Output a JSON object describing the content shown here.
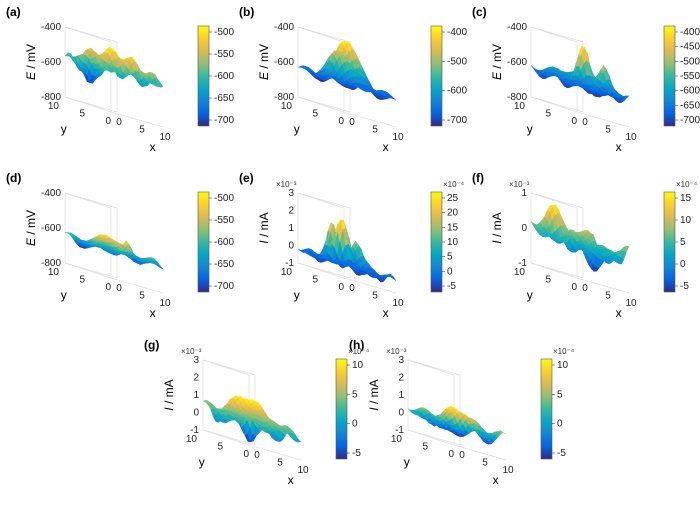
{
  "figure": {
    "colors": {
      "colormap_parula": [
        "#352a87",
        "#0363e1",
        "#1485d4",
        "#06a7c6",
        "#38b99e",
        "#92bf73",
        "#d9ba56",
        "#fcce2e",
        "#f9fb0e"
      ],
      "text": "#000000",
      "grid": "#dddddd"
    }
  },
  "chart_data": [
    {
      "panel": "(a)",
      "type": "surface",
      "xlabel": "x",
      "ylabel": "y",
      "zlabel_italic": "E",
      "zlabel_unit": " / mV",
      "x_ticks": [
        "0",
        "5",
        "10"
      ],
      "y_ticks": [
        "0",
        "5",
        "10"
      ],
      "z_ticks": [
        "-400",
        "-600",
        "-800"
      ],
      "zlim": [
        -800,
        -400
      ],
      "colorbar": {
        "ticks": [
          "-500",
          "-550",
          "-600",
          "-650",
          "-700"
        ],
        "exponent": ""
      },
      "surface": {
        "base": -560,
        "amplitude": 45,
        "seed": 1,
        "features": [
          {
            "x": 6,
            "y": 6,
            "amp": 70,
            "w": 2.2
          },
          {
            "x": 2,
            "y": 7,
            "amp": -160,
            "w": 0.8
          },
          {
            "x": 8,
            "y": 3,
            "amp": 40,
            "w": 1.5
          }
        ]
      }
    },
    {
      "panel": "(b)",
      "type": "surface",
      "xlabel": "x",
      "ylabel": "y",
      "zlabel_italic": "E",
      "zlabel_unit": " / mV",
      "x_ticks": [
        "0",
        "5",
        "10"
      ],
      "y_ticks": [
        "0",
        "5",
        "10"
      ],
      "z_ticks": [
        "-400",
        "-600",
        "-800"
      ],
      "zlim": [
        -800,
        -400
      ],
      "colorbar": {
        "ticks": [
          "-400",
          "-500",
          "-600",
          "-700"
        ],
        "exponent": ""
      },
      "surface": {
        "base": -640,
        "amplitude": 35,
        "seed": 2,
        "features": [
          {
            "x": 4,
            "y": 4,
            "amp": 260,
            "w": 1.6
          },
          {
            "x": 7,
            "y": 8,
            "amp": 160,
            "w": 1.5
          },
          {
            "x": 1,
            "y": 2,
            "amp": -90,
            "w": 1.2
          }
        ]
      }
    },
    {
      "panel": "(c)",
      "type": "surface",
      "xlabel": "x",
      "ylabel": "y",
      "zlabel_italic": "E",
      "zlabel_unit": " / mV",
      "x_ticks": [
        "0",
        "5",
        "10"
      ],
      "y_ticks": [
        "0",
        "5",
        "10"
      ],
      "z_ticks": [
        "-400",
        "-600",
        "-800"
      ],
      "zlim": [
        -800,
        -400
      ],
      "colorbar": {
        "ticks": [
          "-400",
          "-450",
          "-500",
          "-550",
          "-600",
          "-650",
          "-700"
        ],
        "exponent": ""
      },
      "surface": {
        "base": -640,
        "amplitude": 35,
        "seed": 3,
        "features": [
          {
            "x": 7,
            "y": 6,
            "amp": 220,
            "w": 0.9
          },
          {
            "x": 9,
            "y": 4,
            "amp": 140,
            "w": 0.8
          },
          {
            "x": 3,
            "y": 5,
            "amp": 60,
            "w": 1.6
          }
        ]
      }
    },
    {
      "panel": "(d)",
      "type": "surface",
      "xlabel": "x",
      "ylabel": "y",
      "zlabel_italic": "E",
      "zlabel_unit": " / mV",
      "x_ticks": [
        "0",
        "5",
        "10"
      ],
      "y_ticks": [
        "0",
        "5",
        "10"
      ],
      "z_ticks": [
        "-400",
        "-600",
        "-800"
      ],
      "zlim": [
        -800,
        -400
      ],
      "colorbar": {
        "ticks": [
          "-500",
          "-550",
          "-600",
          "-650",
          "-700"
        ],
        "exponent": ""
      },
      "surface": {
        "base": -650,
        "amplitude": 25,
        "seed": 4,
        "features": [
          {
            "x": 6,
            "y": 7,
            "amp": 80,
            "w": 1.4
          },
          {
            "x": 9,
            "y": 6,
            "amp": 90,
            "w": 0.7
          },
          {
            "x": 2,
            "y": 3,
            "amp": 40,
            "w": 1.4
          }
        ]
      }
    },
    {
      "panel": "(e)",
      "type": "surface",
      "xlabel": "x",
      "ylabel": "y",
      "zlabel_italic": "I",
      "zlabel_unit": " / mA",
      "x_ticks": [
        "0",
        "5",
        "10"
      ],
      "y_ticks": [
        "0",
        "5",
        "10"
      ],
      "z_ticks": [
        "3",
        "2",
        "1",
        "0",
        "-1"
      ],
      "zlim": [
        -1,
        3
      ],
      "z_exponent": "×10⁻³",
      "colorbar": {
        "ticks": [
          "25",
          "20",
          "15",
          "10",
          "5",
          "0",
          "-5"
        ],
        "exponent": "×10⁻⁴"
      },
      "surface": {
        "base": -0.3,
        "amplitude": 0.25,
        "seed": 5,
        "features": [
          {
            "x": 6,
            "y": 7,
            "amp": 2.6,
            "w": 1.0
          },
          {
            "x": 3,
            "y": 6,
            "amp": 2.0,
            "w": 0.8
          },
          {
            "x": 5,
            "y": 3,
            "amp": 1.6,
            "w": 0.9
          }
        ]
      }
    },
    {
      "panel": "(f)",
      "type": "surface",
      "xlabel": "x",
      "ylabel": "y",
      "zlabel_italic": "I",
      "zlabel_unit": " / mA",
      "x_ticks": [
        "0",
        "5",
        "10"
      ],
      "y_ticks": [
        "0",
        "5",
        "10"
      ],
      "z_ticks": [
        "1",
        "0",
        "-1"
      ],
      "zlim": [
        -1,
        1
      ],
      "z_exponent": "×10⁻³",
      "colorbar": {
        "ticks": [
          "15",
          "10",
          "5",
          "0",
          "-5"
        ],
        "exponent": "×10⁻⁴"
      },
      "surface": {
        "base": 0.0,
        "amplitude": 0.25,
        "seed": 6,
        "features": [
          {
            "x": 2,
            "y": 7,
            "amp": 0.6,
            "w": 1.2
          },
          {
            "x": 8,
            "y": 8,
            "amp": 0.5,
            "w": 1.2
          },
          {
            "x": 6,
            "y": 3,
            "amp": -0.6,
            "w": 1.4
          }
        ]
      }
    },
    {
      "panel": "(g)",
      "type": "surface",
      "xlabel": "x",
      "ylabel": "y",
      "zlabel_italic": "I",
      "zlabel_unit": " / mA",
      "x_ticks": [
        "0",
        "5",
        "10"
      ],
      "y_ticks": [
        "0",
        "5",
        "10"
      ],
      "z_ticks": [
        "3",
        "2",
        "1",
        "0",
        "-1"
      ],
      "zlim": [
        -1,
        3
      ],
      "z_exponent": "×10⁻³",
      "colorbar": {
        "ticks": [
          "10",
          "5",
          "0",
          "-5"
        ],
        "exponent": "×10⁻⁴"
      },
      "surface": {
        "base": 0.2,
        "amplitude": 0.4,
        "seed": 7,
        "features": [
          {
            "x": 5,
            "y": 6,
            "amp": 1.3,
            "w": 1.8
          },
          {
            "x": 2,
            "y": 3,
            "amp": -0.9,
            "w": 1.0
          },
          {
            "x": 8,
            "y": 4,
            "amp": 0.8,
            "w": 1.0
          }
        ]
      }
    },
    {
      "panel": "(h)",
      "type": "surface",
      "xlabel": "x",
      "ylabel": "y",
      "zlabel_italic": "I",
      "zlabel_unit": " / mA",
      "x_ticks": [
        "0",
        "5",
        "10"
      ],
      "y_ticks": [
        "0",
        "5",
        "10"
      ],
      "z_ticks": [
        "3",
        "2",
        "1",
        "0",
        "-1"
      ],
      "zlim": [
        -1,
        3
      ],
      "z_exponent": "×10⁻³",
      "colorbar": {
        "ticks": [
          "10",
          "5",
          "0",
          "-5"
        ],
        "exponent": "×10⁻⁴"
      },
      "surface": {
        "base": 0.1,
        "amplitude": 0.35,
        "seed": 8,
        "features": [
          {
            "x": 6,
            "y": 6,
            "amp": 0.9,
            "w": 1.6
          },
          {
            "x": 3,
            "y": 4,
            "amp": -0.6,
            "w": 1.2
          },
          {
            "x": 8,
            "y": 7,
            "amp": 0.6,
            "w": 1.0
          }
        ]
      }
    }
  ]
}
